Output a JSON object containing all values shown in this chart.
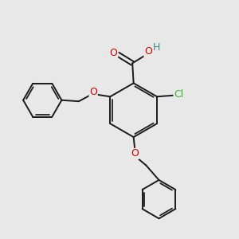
{
  "bg_color": "#e8e8e8",
  "bond_color": "#1a1a1a",
  "bond_width": 1.4,
  "atom_colors": {
    "O": "#cc0000",
    "Cl": "#33bb33",
    "H": "#448888",
    "C": "#1a1a1a"
  },
  "figsize": [
    3.0,
    3.0
  ],
  "dpi": 100
}
